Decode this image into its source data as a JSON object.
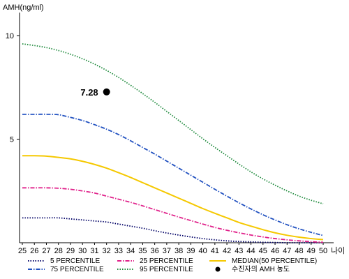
{
  "chart_data": {
    "type": "line",
    "title": "",
    "ylabel": "AMH(ng/ml)",
    "xlabel": "나이",
    "x": [
      25,
      26,
      27,
      28,
      29,
      30,
      31,
      32,
      33,
      34,
      35,
      36,
      37,
      38,
      39,
      40,
      41,
      42,
      43,
      44,
      45,
      46,
      47,
      48,
      49,
      50
    ],
    "x_tick_labels": [
      "25",
      "26",
      "27",
      "28",
      "29",
      "30",
      "31",
      "32",
      "33",
      "34",
      "35",
      "36",
      "37",
      "38",
      "39",
      "40",
      "41",
      "42",
      "43",
      "44",
      "45",
      "46",
      "47",
      "48",
      "49",
      "50"
    ],
    "y_ticks": [
      5,
      10
    ],
    "y_tick_labels": [
      "5",
      "10"
    ],
    "xlim": [
      25,
      50
    ],
    "ylim": [
      0,
      11
    ],
    "grid": false,
    "legend_position": "bottom",
    "series": [
      {
        "name": "5 PERCENTILE",
        "color": "#000066",
        "style": "dotted",
        "values": [
          1.2,
          1.2,
          1.2,
          1.2,
          1.15,
          1.1,
          1.05,
          1.0,
          0.9,
          0.8,
          0.7,
          0.58,
          0.47,
          0.37,
          0.28,
          0.2,
          0.14,
          0.09,
          0.06,
          0.04,
          0.02,
          0.01,
          0.0,
          0.0,
          0.0,
          0.0
        ]
      },
      {
        "name": "25 PERCENTILE",
        "color": "#e0208a",
        "style": "dashdot",
        "values": [
          2.65,
          2.65,
          2.65,
          2.63,
          2.58,
          2.5,
          2.4,
          2.25,
          2.1,
          1.95,
          1.78,
          1.6,
          1.42,
          1.24,
          1.07,
          0.9,
          0.74,
          0.6,
          0.48,
          0.37,
          0.28,
          0.2,
          0.14,
          0.09,
          0.05,
          0.02
        ]
      },
      {
        "name": "MEDIAN(50 PERCENTILE)",
        "color": "#f5c800",
        "style": "solid",
        "values": [
          4.2,
          4.2,
          4.18,
          4.12,
          4.05,
          3.93,
          3.78,
          3.6,
          3.38,
          3.15,
          2.9,
          2.65,
          2.4,
          2.15,
          1.9,
          1.65,
          1.42,
          1.2,
          0.98,
          0.8,
          0.63,
          0.48,
          0.36,
          0.27,
          0.2,
          0.15
        ]
      },
      {
        "name": "75 PERCENTILE",
        "color": "#2050c0",
        "style": "dashdot",
        "values": [
          6.2,
          6.2,
          6.2,
          6.18,
          6.05,
          5.9,
          5.7,
          5.48,
          5.22,
          4.92,
          4.6,
          4.28,
          3.94,
          3.6,
          3.26,
          2.92,
          2.58,
          2.25,
          1.93,
          1.63,
          1.35,
          1.1,
          0.87,
          0.67,
          0.5,
          0.35
        ]
      },
      {
        "name": "95 PERCENTILE",
        "color": "#1e8a3c",
        "style": "dotted",
        "values": [
          9.6,
          9.52,
          9.42,
          9.28,
          9.1,
          8.88,
          8.62,
          8.32,
          7.98,
          7.6,
          7.2,
          6.78,
          6.34,
          5.9,
          5.46,
          5.02,
          4.6,
          4.2,
          3.8,
          3.42,
          3.08,
          2.78,
          2.5,
          2.25,
          2.05,
          1.88
        ]
      }
    ],
    "marker": {
      "label": "수진자의 AMH 농도",
      "x": 32,
      "y": 7.28,
      "value_label": "7.28",
      "color": "#000000"
    }
  }
}
